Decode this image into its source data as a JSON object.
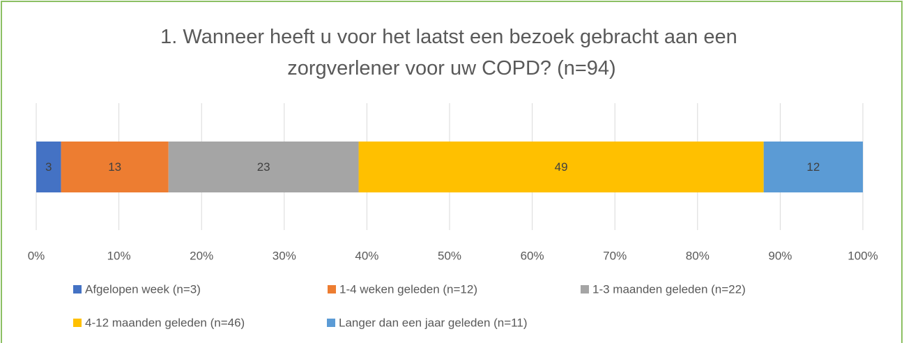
{
  "chart_data": {
    "type": "bar",
    "orientation": "horizontal",
    "stacked": true,
    "title": "1. Wanneer heeft u voor het laatst een bezoek gebracht aan een zorgverlener voor uw COPD? (n=94)",
    "series": [
      {
        "name": "Afgelopen week (n=3)",
        "color": "#4472c4",
        "values": [
          3
        ]
      },
      {
        "name": "1-4 weken geleden (n=12)",
        "color": "#ed7d31",
        "values": [
          13
        ]
      },
      {
        "name": "1-3 maanden geleden (n=22)",
        "color": "#a5a5a5",
        "values": [
          23
        ]
      },
      {
        "name": "4-12 maanden geleden (n=46)",
        "color": "#ffc000",
        "values": [
          49
        ]
      },
      {
        "name": "Langer dan een jaar geleden (n=11)",
        "color": "#5b9bd5",
        "values": [
          12
        ]
      }
    ],
    "xlim": [
      0,
      100
    ],
    "xticks": [
      {
        "value": 0,
        "label": "0%"
      },
      {
        "value": 10,
        "label": "10%"
      },
      {
        "value": 20,
        "label": "20%"
      },
      {
        "value": 30,
        "label": "30%"
      },
      {
        "value": 40,
        "label": "40%"
      },
      {
        "value": 50,
        "label": "50%"
      },
      {
        "value": 60,
        "label": "60%"
      },
      {
        "value": 70,
        "label": "70%"
      },
      {
        "value": 80,
        "label": "80%"
      },
      {
        "value": 90,
        "label": "90%"
      },
      {
        "value": 100,
        "label": "100%"
      }
    ],
    "grid": true,
    "legend": "bottom"
  }
}
